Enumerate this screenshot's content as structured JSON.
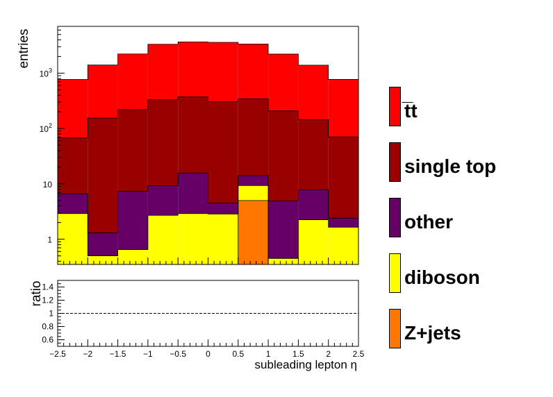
{
  "chart_data": [
    {
      "type": "bar",
      "stacked": true,
      "yscale": "log",
      "ylabel": "entries",
      "xlim": [
        -2.5,
        2.5
      ],
      "ylim": [
        0.35,
        7000
      ],
      "y_tick_labels": [
        "1",
        "10",
        "10^2",
        "10^3"
      ],
      "bin_edges": [
        -2.5,
        -2.0,
        -1.5,
        -1.0,
        -0.5,
        0.0,
        0.5,
        1.0,
        1.5,
        2.0,
        2.5
      ],
      "series": [
        {
          "name": "Z+jets",
          "color": "#ff7700",
          "values": [
            0,
            0,
            0,
            0,
            0,
            0,
            5.0,
            0,
            0,
            0
          ]
        },
        {
          "name": "diboson",
          "color": "#ffff00",
          "values": [
            2.9,
            0.5,
            0.65,
            2.7,
            2.9,
            2.85,
            4.3,
            0.45,
            2.25,
            1.65
          ]
        },
        {
          "name": "other",
          "color": "#660066",
          "values": [
            3.7,
            0.8,
            6.7,
            6.6,
            12.8,
            1.65,
            4.8,
            4.45,
            5.55,
            0.75
          ]
        },
        {
          "name": "single top",
          "color": "#990000",
          "values": [
            61,
            153,
            212,
            322,
            356,
            300,
            331,
            203,
            137,
            68
          ]
        },
        {
          "name": "t̅t",
          "color": "#ff0000",
          "values": [
            700,
            1250,
            2000,
            3000,
            3300,
            3300,
            3000,
            2000,
            1250,
            700
          ]
        }
      ],
      "totals": [
        768,
        1405,
        2219,
        3331,
        3672,
        3604,
        3345,
        2208,
        1395,
        770
      ]
    },
    {
      "type": "line",
      "ylabel": "ratio",
      "xlabel": "subleading lepton η",
      "xlim": [
        -2.5,
        2.5
      ],
      "ylim": [
        0.5,
        1.5
      ],
      "x_ticks": [
        -2.5,
        -2,
        -1.5,
        -1,
        -0.5,
        0,
        0.5,
        1,
        1.5,
        2,
        2.5
      ],
      "x_tick_labels": [
        "−2.5",
        "−2",
        "−1.5",
        "−1",
        "−0.5",
        "0",
        "0.5",
        "1",
        "1.5",
        "2",
        "2.5"
      ],
      "y_ticks": [
        0.6,
        0.8,
        1,
        1.2,
        1.4
      ],
      "y_tick_labels": [
        "0.6",
        "0.8",
        "1",
        "1.2",
        "1.4"
      ],
      "series": [
        {
          "values": [
            1,
            1,
            1,
            1,
            1,
            1,
            1,
            1,
            1,
            1
          ],
          "style": "dashed"
        }
      ]
    }
  ],
  "legend": {
    "placement": "right",
    "items": [
      {
        "label": "t̅t",
        "color": "#ff0000"
      },
      {
        "label": "single top",
        "color": "#990000"
      },
      {
        "label": "other",
        "color": "#660066"
      },
      {
        "label": "diboson",
        "color": "#ffff00"
      },
      {
        "label": "Z+jets",
        "color": "#ff7700"
      }
    ]
  }
}
